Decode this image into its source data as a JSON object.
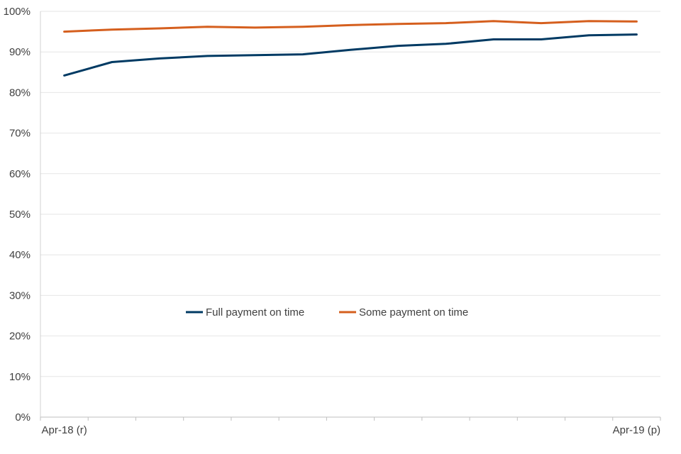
{
  "chart_data": {
    "type": "line",
    "title": "",
    "xlabel": "",
    "ylabel": "",
    "x_tick_labels": [
      {
        "index": 0,
        "label": "Apr-18 (r)"
      },
      {
        "index": 12,
        "label": "Apr-19 (p)"
      }
    ],
    "ylim": [
      0,
      100
    ],
    "y_ticks": [
      0,
      10,
      20,
      30,
      40,
      50,
      60,
      70,
      80,
      90,
      100
    ],
    "y_tick_labels": [
      "0%",
      "10%",
      "20%",
      "30%",
      "40%",
      "50%",
      "60%",
      "70%",
      "80%",
      "90%",
      "100%"
    ],
    "grid": true,
    "legend_position": "center",
    "series": [
      {
        "name": "Full payment on time",
        "color": "#003a63",
        "values": [
          84.2,
          87.5,
          88.4,
          89.0,
          89.2,
          89.4,
          90.5,
          91.5,
          92.0,
          93.1,
          93.1,
          94.1,
          94.3
        ]
      },
      {
        "name": "Some payment on time",
        "color": "#d55f1e",
        "values": [
          95.0,
          95.5,
          95.8,
          96.2,
          96.0,
          96.2,
          96.6,
          96.9,
          97.1,
          97.6,
          97.1,
          97.6,
          97.5
        ]
      }
    ]
  }
}
